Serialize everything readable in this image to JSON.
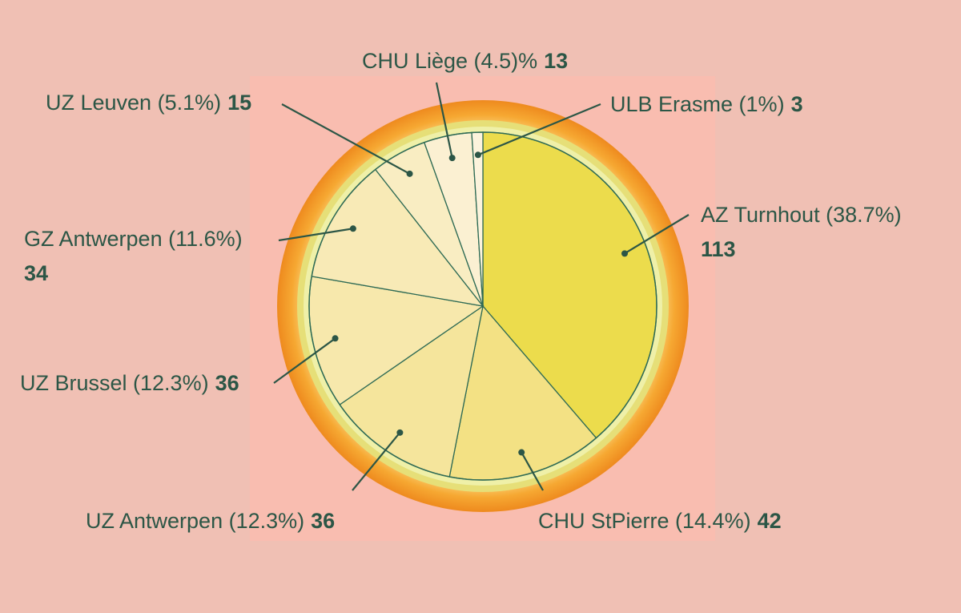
{
  "chart_data": {
    "type": "pie",
    "categories": [
      "AZ Turnhout (38.7%)",
      "CHU StPierre (14.4%)",
      "UZ Antwerpen (12.3%)",
      "UZ Brussel (12.3%)",
      "GZ Antwerpen (11.6%)",
      "UZ Leuven (5.1%)",
      "CHU Liège (4.5)%",
      "ULB Erasme (1%)"
    ],
    "values": [
      113,
      42,
      36,
      36,
      34,
      15,
      13,
      3
    ],
    "colors": [
      "#ecdc4c",
      "#f3e184",
      "#f5e59c",
      "#f7e8ac",
      "#f8eab6",
      "#f9edc2",
      "#fbf0d2",
      "#fcf3dc"
    ]
  }
}
